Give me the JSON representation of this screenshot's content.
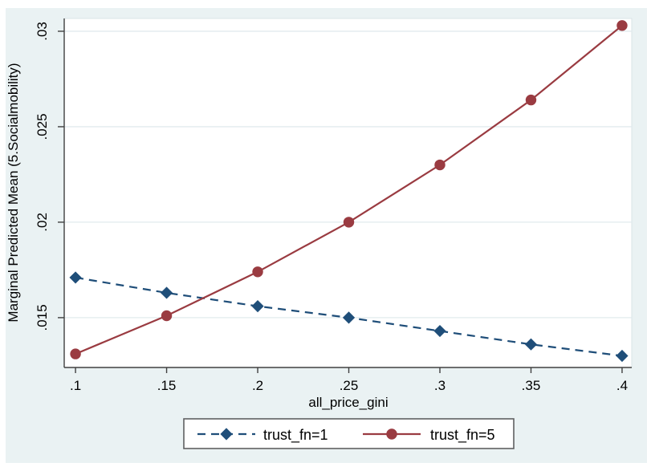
{
  "colors": {
    "figure_background": "#eaf2f3",
    "plot_background": "#ffffff",
    "gridline": "#e2ebee",
    "plot_outline": "#d9e4e7",
    "axis_line": "#404040",
    "legend_border": "#5f6062",
    "navy": "#1f4e79",
    "maroon": "#9a3b41"
  },
  "chart_data": {
    "type": "line",
    "title": "",
    "xlabel": "all_price_gini",
    "ylabel": "Marginal Predicted Mean (5.Socialmobility)",
    "x": [
      0.1,
      0.15,
      0.2,
      0.25,
      0.3,
      0.35,
      0.4
    ],
    "x_tick_labels": [
      ".1",
      ".15",
      ".2",
      ".25",
      ".3",
      ".35",
      ".4"
    ],
    "y_ticks": [
      0.015,
      0.02,
      0.025,
      0.03
    ],
    "y_tick_labels": [
      ".015",
      ".02",
      ".025",
      ".03"
    ],
    "xlim": [
      0.0938,
      0.4053
    ],
    "ylim": [
      0.01239,
      0.03067
    ],
    "grid": "horizontal-only",
    "legend_position": "bottom-center",
    "series": [
      {
        "name": "trust_fn=1",
        "color": "#1f4e79",
        "line_style": "dashed",
        "marker": "diamond",
        "values": [
          0.0171,
          0.0163,
          0.0156,
          0.015,
          0.0143,
          0.0136,
          0.013
        ]
      },
      {
        "name": "trust_fn=5",
        "color": "#9a3b41",
        "line_style": "solid",
        "marker": "circle",
        "values": [
          0.0131,
          0.0151,
          0.0174,
          0.02,
          0.023,
          0.0264,
          0.0303
        ]
      }
    ]
  }
}
